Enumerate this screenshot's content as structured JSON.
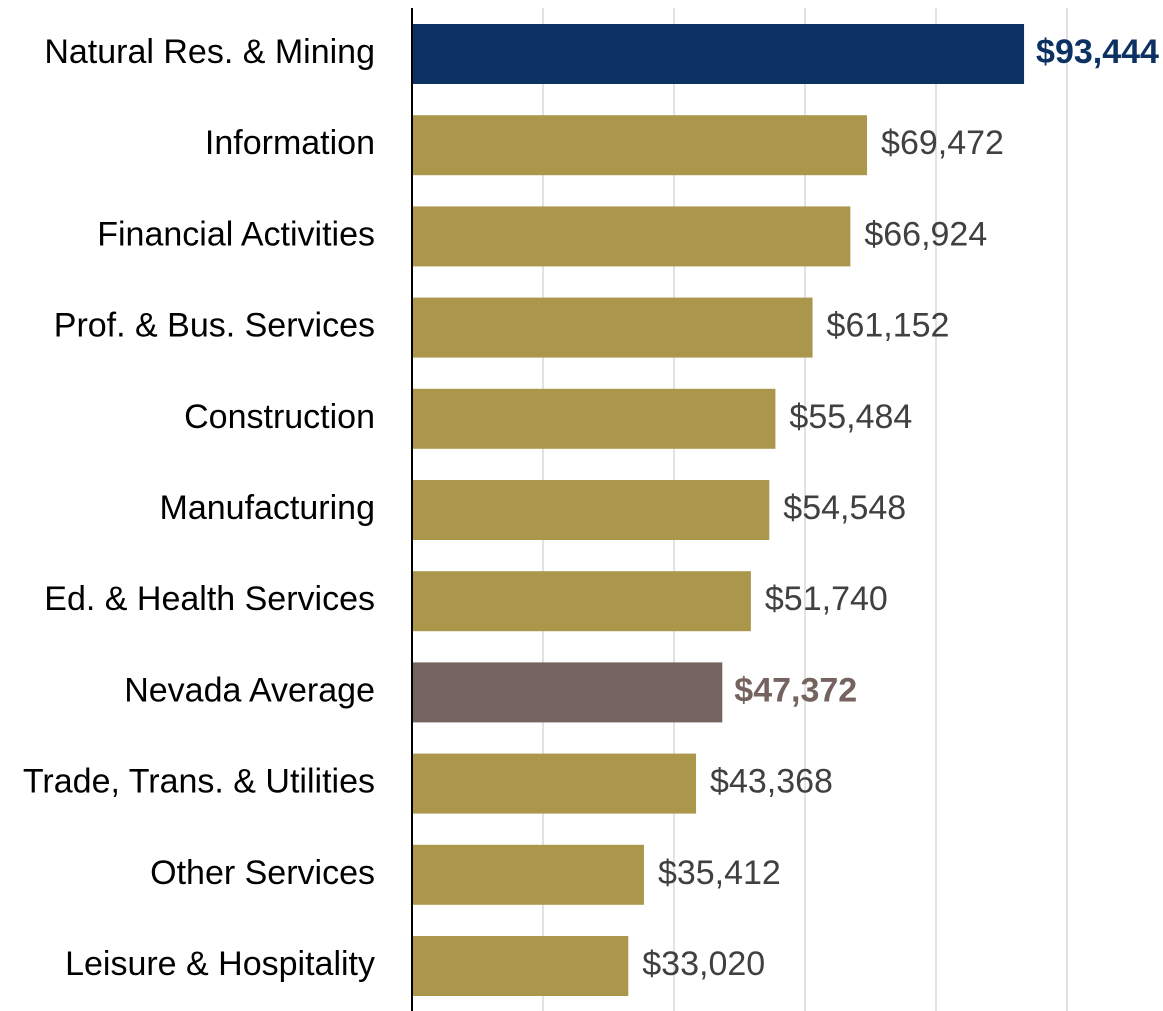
{
  "chart_data": {
    "type": "barh",
    "categories": [
      "Natural Res. & Mining",
      "Information",
      "Financial Activities",
      "Prof. & Bus. Services",
      "Construction",
      "Manufacturing",
      "Ed. & Health Services",
      "Nevada Average",
      "Trade, Trans. & Utilities",
      "Other Services",
      "Leisure & Hospitality"
    ],
    "values": [
      93444,
      69472,
      66924,
      61152,
      55484,
      54548,
      51740,
      47372,
      43368,
      35412,
      33020
    ],
    "value_labels": [
      "$93,444",
      "$69,472",
      "$66,924",
      "$61,152",
      "$55,484",
      "$54,548",
      "$51,740",
      "$47,372",
      "$43,368",
      "$35,412",
      "$33,020"
    ],
    "color": "#ab974c",
    "colors": [
      "#0c3163",
      "#ab974c",
      "#ab974c",
      "#ab974c",
      "#ab974c",
      "#ab974c",
      "#ab974c",
      "#75635f",
      "#ab974c",
      "#ab974c",
      "#ab974c"
    ],
    "xlim": [
      0,
      100000
    ],
    "xticks": [
      0,
      20000,
      40000,
      60000,
      80000,
      100000
    ],
    "grid": true
  }
}
